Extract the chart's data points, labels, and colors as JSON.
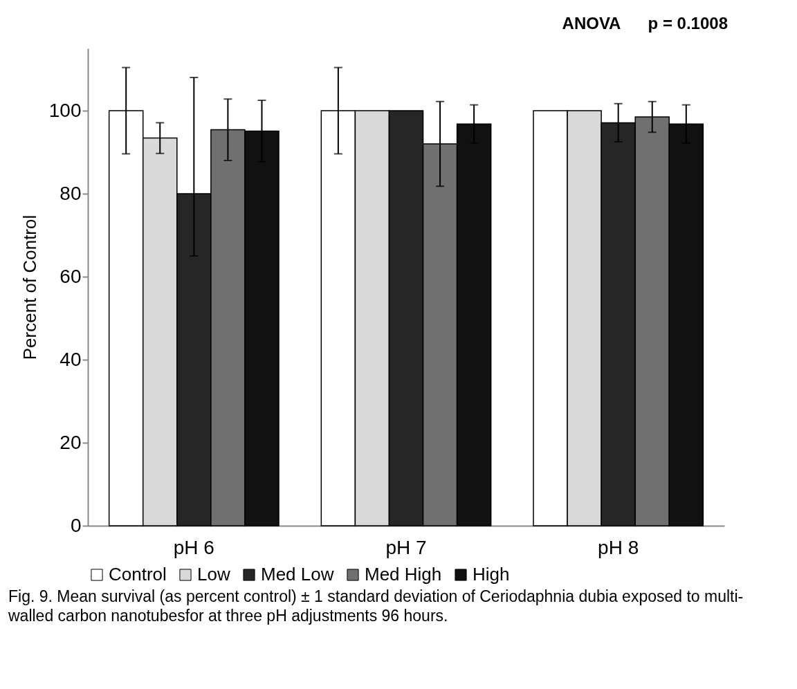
{
  "chart_data": {
    "type": "bar",
    "ylabel": "Percent of Control",
    "categories": [
      "pH 6",
      "pH 7",
      "pH 8"
    ],
    "series": [
      {
        "name": "Control",
        "color": "#ffffff",
        "values": [
          100,
          100,
          100
        ],
        "errors": [
          10.4,
          10.4,
          null
        ]
      },
      {
        "name": "Low",
        "color": "#d9d9d9",
        "values": [
          93.4,
          100,
          100
        ],
        "errors": [
          3.7,
          null,
          null
        ]
      },
      {
        "name": "Med Low",
        "color": "#262626",
        "values": [
          80,
          100,
          97.1
        ],
        "errors": [
          [
            65,
            108
          ],
          null,
          4.6
        ]
      },
      {
        "name": "Med High",
        "color": "#707070",
        "values": [
          95.4,
          92,
          98.5
        ],
        "errors": [
          7.4,
          10.2,
          3.7
        ]
      },
      {
        "name": "High",
        "color": "#111111",
        "values": [
          95.1,
          96.8,
          96.8
        ],
        "errors": [
          7.4,
          4.6,
          4.6
        ]
      }
    ],
    "ylim": [
      0,
      115
    ],
    "yticks": [
      0,
      20,
      40,
      60,
      80,
      100
    ],
    "grid": false,
    "legend": "bottom",
    "annotations": [
      "ANOVA      p = 0.1008",
      "Fig. 9. Mean survival (as percent control) ± 1 standard deviation of Ceriodaphnia dubia exposed to multi-walled carbon nanotubesfor at three pH adjustments 96 hours."
    ]
  }
}
